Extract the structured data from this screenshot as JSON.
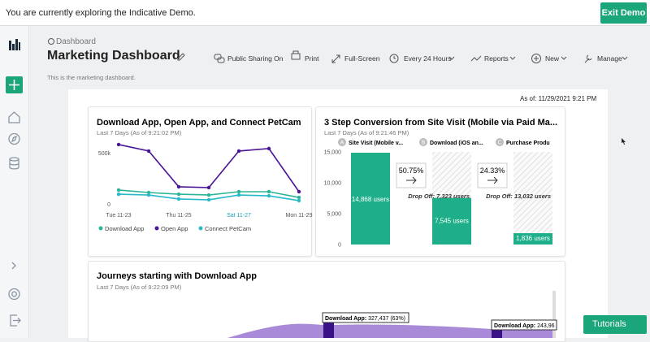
{
  "banner": {
    "message": "You are currently exploring the Indicative Demo.",
    "button": "Exit Demo"
  },
  "header": {
    "breadcrumb": "Dashboard",
    "title": "Marketing Dashboard",
    "description": "This is the marketing dashboard.",
    "toolbar": [
      "Public Sharing On",
      "Print",
      "Full-Screen",
      "Every 24 Hours",
      "Reports",
      "New",
      "Manage"
    ]
  },
  "as_of": "As of: 11/29/2021 9:21 PM",
  "chart_data": [
    {
      "type": "line",
      "title": "Download App, Open App, and Connect PetCam",
      "subtitle": "Last 7 Days (As of 9:21:02 PM)",
      "categories": [
        "Tue 11-23",
        null,
        "Thu 11-25",
        null,
        "Sat 11-27",
        null,
        "Mon 11-29"
      ],
      "series": [
        {
          "name": "Download App",
          "color": "#2bb597",
          "values": [
            135000,
            111000,
            95000,
            87000,
            119000,
            119000,
            63000
          ]
        },
        {
          "name": "Open App",
          "color": "#4a1597",
          "values": [
            579000,
            516000,
            167000,
            159000,
            516000,
            540000,
            119000
          ]
        },
        {
          "name": "Connect PetCam",
          "color": "#27b9cc",
          "values": [
            95000,
            87000,
            48000,
            40000,
            87000,
            79000,
            32000
          ]
        }
      ],
      "ylim": [
        0,
        650000
      ],
      "yticks": [
        0,
        {
          "value": 500000,
          "label": "500k"
        }
      ],
      "grid": false
    },
    {
      "type": "bar",
      "title": "3 Step Conversion from Site Visit (Mobile via Paid Ma...",
      "subtitle": "Last 7 Days (As of 9:21:46 PM)",
      "step_letters": [
        "A",
        "B",
        "C"
      ],
      "categories": [
        "Site Visit (Mobile v...",
        "Download (iOS an...",
        "Purchase Produ"
      ],
      "values": [
        14868,
        7545,
        1836
      ],
      "value_labels": [
        "14,868 users",
        "7,545 users",
        "1,836 users"
      ],
      "conversion_labels": [
        "50.75%",
        "24.33%"
      ],
      "drop_off_labels": [
        "Drop Off: 7,323 users",
        "Drop Off: 13,032 users"
      ],
      "color": "#1fae8a",
      "ylim": [
        0,
        15000
      ],
      "yticks": [
        0,
        {
          "value": 5000,
          "label": "5,000"
        },
        {
          "value": 10000,
          "label": "10,000"
        },
        {
          "value": 15000,
          "label": "15,000"
        }
      ],
      "grid": false
    }
  ],
  "journeys": {
    "title": "Journeys starting with Download App",
    "subtitle": "Last 7 Days (As of 9:22:09 PM)",
    "nodes": [
      {
        "name": "Download App:",
        "value": "327,437 (63%)"
      },
      {
        "name": "Download App:",
        "value": "243,96"
      }
    ]
  },
  "tutorials": "Tutorials"
}
